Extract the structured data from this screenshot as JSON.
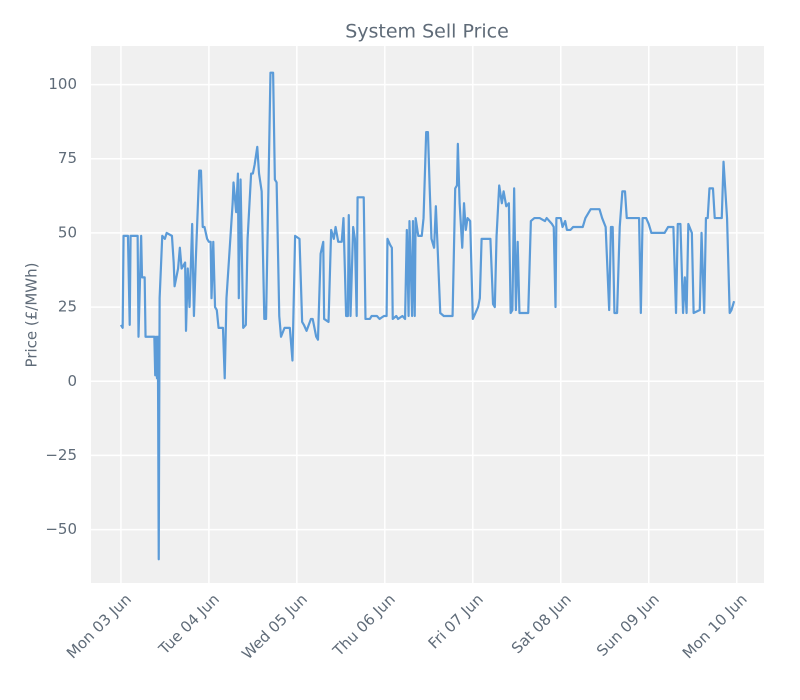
{
  "chart_data": {
    "type": "line",
    "title": "System Sell Price",
    "y_label": "Price (£/MWh)",
    "color": "#5b9bd8",
    "grid": true,
    "xlim": [
      -0.34,
      7.31
    ],
    "ylim": [
      -68,
      113
    ],
    "xticks": [
      {
        "value": 0,
        "label": "Mon 03 Jun"
      },
      {
        "value": 1,
        "label": "Tue 04 Jun"
      },
      {
        "value": 2,
        "label": "Wed 05 Jun"
      },
      {
        "value": 3,
        "label": "Thu 06 Jun"
      },
      {
        "value": 4,
        "label": "Fri 07 Jun"
      },
      {
        "value": 5,
        "label": "Sat 08 Jun"
      },
      {
        "value": 6,
        "label": "Sun 09 Jun"
      },
      {
        "value": 7,
        "label": "Mon 10 Jun"
      }
    ],
    "yticks": [
      {
        "value": -50,
        "label": "−50"
      },
      {
        "value": -25,
        "label": "−25"
      },
      0,
      25,
      50,
      75,
      100
    ],
    "x": [
      0,
      0.02,
      0.03,
      0.08,
      0.1,
      0.11,
      0.19,
      0.2,
      0.23,
      0.24,
      0.27,
      0.28,
      0.38,
      0.39,
      0.4,
      0.41,
      0.42,
      0.43,
      0.44,
      0.47,
      0.5,
      0.52,
      0.58,
      0.6,
      0.61,
      0.65,
      0.67,
      0.69,
      0.73,
      0.74,
      0.76,
      0.78,
      0.81,
      0.83,
      0.85,
      0.89,
      0.91,
      0.93,
      0.95,
      0.98,
      1.0,
      1.02,
      1.03,
      1.05,
      1.07,
      1.09,
      1.11,
      1.16,
      1.18,
      1.2,
      1.27,
      1.28,
      1.31,
      1.33,
      1.34,
      1.36,
      1.39,
      1.42,
      1.44,
      1.48,
      1.5,
      1.52,
      1.55,
      1.57,
      1.6,
      1.63,
      1.65,
      1.68,
      1.7,
      1.73,
      1.75,
      1.77,
      1.8,
      1.82,
      1.86,
      1.92,
      1.95,
      1.98,
      2.03,
      2.06,
      2.08,
      2.11,
      2.16,
      2.18,
      2.22,
      2.24,
      2.27,
      2.3,
      2.31,
      2.36,
      2.39,
      2.42,
      2.44,
      2.47,
      2.51,
      2.53,
      2.56,
      2.58,
      2.59,
      2.61,
      2.64,
      2.66,
      2.68,
      2.69,
      2.76,
      2.78,
      2.83,
      2.85,
      2.91,
      2.94,
      2.99,
      3.02,
      3.03,
      3.06,
      3.08,
      3.09,
      3.13,
      3.15,
      3.2,
      3.23,
      3.25,
      3.27,
      3.28,
      3.31,
      3.32,
      3.34,
      3.35,
      3.38,
      3.42,
      3.44,
      3.47,
      3.49,
      3.51,
      3.53,
      3.56,
      3.58,
      3.6,
      3.63,
      3.67,
      3.77,
      3.8,
      3.82,
      3.83,
      3.85,
      3.88,
      3.9,
      3.92,
      3.94,
      3.97,
      4.0,
      4.03,
      4.06,
      4.08,
      4.1,
      4.16,
      4.2,
      4.23,
      4.25,
      4.27,
      4.3,
      4.33,
      4.35,
      4.38,
      4.41,
      4.43,
      4.45,
      4.47,
      4.49,
      4.51,
      4.53,
      4.57,
      4.6,
      4.63,
      4.66,
      4.7,
      4.76,
      4.82,
      4.84,
      4.9,
      4.92,
      4.94,
      4.95,
      5.0,
      5.02,
      5.05,
      5.07,
      5.11,
      5.14,
      5.25,
      5.28,
      5.34,
      5.44,
      5.47,
      5.51,
      5.55,
      5.57,
      5.59,
      5.61,
      5.64,
      5.67,
      5.7,
      5.73,
      5.75,
      5.89,
      5.91,
      5.93,
      5.97,
      6.0,
      6.03,
      6.14,
      6.18,
      6.22,
      6.28,
      6.31,
      6.33,
      6.36,
      6.39,
      6.41,
      6.43,
      6.45,
      6.49,
      6.51,
      6.58,
      6.6,
      6.63,
      6.65,
      6.67,
      6.69,
      6.73,
      6.75,
      6.83,
      6.85,
      6.89,
      6.92,
      6.94,
      6.97
    ],
    "values": [
      19,
      18,
      49,
      49,
      19,
      49,
      49,
      15,
      49,
      35,
      35,
      15,
      15,
      2,
      15,
      1,
      15,
      -60,
      28,
      49,
      48,
      50,
      49,
      40,
      32,
      38,
      45,
      38,
      40,
      17,
      38,
      25,
      53,
      22,
      40,
      71,
      71,
      52,
      52,
      48,
      47,
      47,
      28,
      47,
      25,
      24,
      18,
      18,
      1,
      28,
      60,
      67,
      57,
      70,
      28,
      68,
      18,
      19,
      48,
      70,
      70,
      73,
      79,
      70,
      64,
      21,
      21,
      70,
      104,
      104,
      68,
      67,
      22,
      15,
      18,
      18,
      7,
      49,
      48,
      20,
      19,
      17,
      21,
      21,
      15,
      14,
      43,
      47,
      21,
      20,
      51,
      48,
      52,
      47,
      47,
      55,
      22,
      22,
      56,
      22,
      52,
      48,
      22,
      62,
      62,
      21,
      21,
      22,
      22,
      21,
      22,
      22,
      48,
      46,
      45,
      21,
      22,
      21,
      22,
      21,
      51,
      22,
      54,
      22,
      54,
      22,
      55,
      49,
      49,
      55,
      84,
      84,
      65,
      48,
      45,
      59,
      45,
      23,
      22,
      22,
      65,
      66,
      80,
      60,
      45,
      60,
      51,
      55,
      54,
      21,
      23,
      25,
      28,
      48,
      48,
      48,
      26,
      25,
      49,
      66,
      60,
      64,
      59,
      60,
      23,
      24,
      65,
      24,
      47,
      23,
      23,
      23,
      23,
      54,
      55,
      55,
      54,
      55,
      53,
      52,
      25,
      55,
      55,
      52,
      54,
      51,
      51,
      52,
      52,
      55,
      58,
      58,
      55,
      52,
      24,
      52,
      52,
      23,
      23,
      52,
      64,
      64,
      55,
      55,
      23,
      55,
      55,
      53,
      50,
      50,
      50,
      52,
      52,
      23,
      53,
      53,
      23,
      35,
      23,
      53,
      50,
      23,
      24,
      50,
      23,
      55,
      55,
      65,
      65,
      55,
      55,
      74,
      55,
      23,
      24,
      27
    ]
  }
}
